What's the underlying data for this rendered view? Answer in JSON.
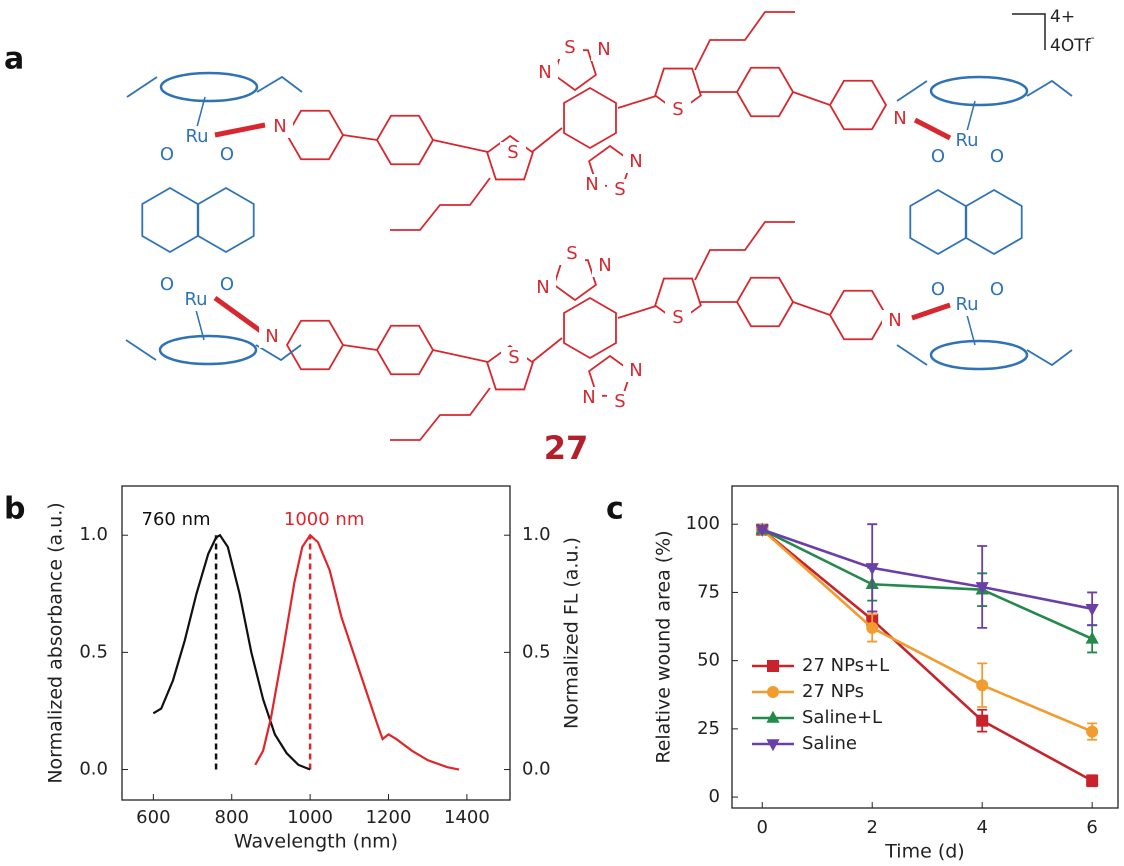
{
  "panel_labels": [
    "a",
    "b",
    "c"
  ],
  "structure": {
    "atoms": [
      "Ru",
      "Ru",
      "Ru",
      "Ru",
      "O",
      "O",
      "O",
      "O",
      "O",
      "O",
      "O",
      "O",
      "N",
      "N",
      "N",
      "N",
      "S",
      "S",
      "S",
      "S",
      "S",
      "N",
      "N",
      "N",
      "N",
      "S",
      "S",
      "N",
      "N",
      "N",
      "N",
      "S"
    ],
    "compound": "27",
    "charge": "4+",
    "counterion": "4OTf",
    "counterion_charge": "-"
  },
  "chart_data": [
    {
      "type": "line",
      "x_label": "Wavelength (nm)",
      "y_label": "Normalized absorbance (a.u.)",
      "y2_label": "Normalized FL (a.u.)",
      "xlim": [
        520,
        1510
      ],
      "xticks": [
        600,
        800,
        1000,
        1200,
        1400
      ],
      "ylim": [
        -0.13,
        1.21
      ],
      "yticks": [
        {
          "value": 0,
          "label": "0.0"
        },
        {
          "value": 0.5,
          "label": "0.5"
        },
        {
          "value": 1,
          "label": "1.0"
        }
      ],
      "y2lim": [
        -0.13,
        1.21
      ],
      "y2ticks": [
        {
          "value": 0,
          "label": "0.0"
        },
        {
          "value": 0.5,
          "label": "0.5"
        },
        {
          "value": 1,
          "label": "1.0"
        }
      ],
      "series": [
        {
          "color": "#111111",
          "x": [
            600,
            620,
            650,
            680,
            710,
            740,
            760,
            770,
            790,
            820,
            850,
            880,
            910,
            940,
            970,
            1000
          ],
          "values": [
            0.24,
            0.26,
            0.38,
            0.55,
            0.75,
            0.92,
            0.99,
            1.0,
            0.95,
            0.75,
            0.5,
            0.3,
            0.15,
            0.07,
            0.02,
            0.0
          ]
        },
        {
          "color": "#e0262b",
          "axis": "y2",
          "x": [
            860,
            880,
            900,
            930,
            960,
            980,
            1000,
            1020,
            1050,
            1080,
            1110,
            1140,
            1170,
            1185,
            1200,
            1220,
            1260,
            1300,
            1350,
            1380
          ],
          "values": [
            0.02,
            0.08,
            0.22,
            0.5,
            0.8,
            0.95,
            1.0,
            0.97,
            0.85,
            0.65,
            0.5,
            0.35,
            0.2,
            0.13,
            0.15,
            0.13,
            0.08,
            0.04,
            0.01,
            0.0
          ]
        }
      ],
      "annotations": [
        {
          "x": 760,
          "text": "760 nm",
          "color": "#111111"
        },
        {
          "x": 1000,
          "text": "1000 nm",
          "color": "#e0262b"
        }
      ]
    },
    {
      "type": "errorbar-line",
      "x_label": "Time (d)",
      "y_label": "Relative wound area (%)",
      "xlim": [
        -0.55,
        6.47
      ],
      "xticks": [
        0,
        2,
        4,
        6
      ],
      "ylim": [
        -4,
        114
      ],
      "yticks": [
        0,
        25,
        50,
        75,
        100
      ],
      "x": [
        0,
        2,
        4,
        6
      ],
      "series": [
        {
          "name": "27 NPs+L",
          "color": "#c8232c",
          "marker": "square",
          "values": [
            98,
            65,
            28,
            6
          ],
          "errors": [
            0,
            3,
            4,
            2
          ]
        },
        {
          "name": "27 NPs",
          "color": "#f29b2f",
          "marker": "circle",
          "values": [
            98,
            62,
            41,
            24
          ],
          "errors": [
            0,
            5,
            8,
            3
          ]
        },
        {
          "name": "Saline+L",
          "color": "#24894a",
          "marker": "triangle-up",
          "values": [
            98,
            78,
            76,
            58
          ],
          "errors": [
            0,
            6,
            6,
            5
          ]
        },
        {
          "name": "Saline",
          "color": "#6a3fa8",
          "marker": "triangle-down",
          "values": [
            98,
            84,
            77,
            69
          ],
          "errors": [
            0,
            16,
            15,
            6
          ]
        }
      ],
      "legend": "lower-left"
    }
  ]
}
